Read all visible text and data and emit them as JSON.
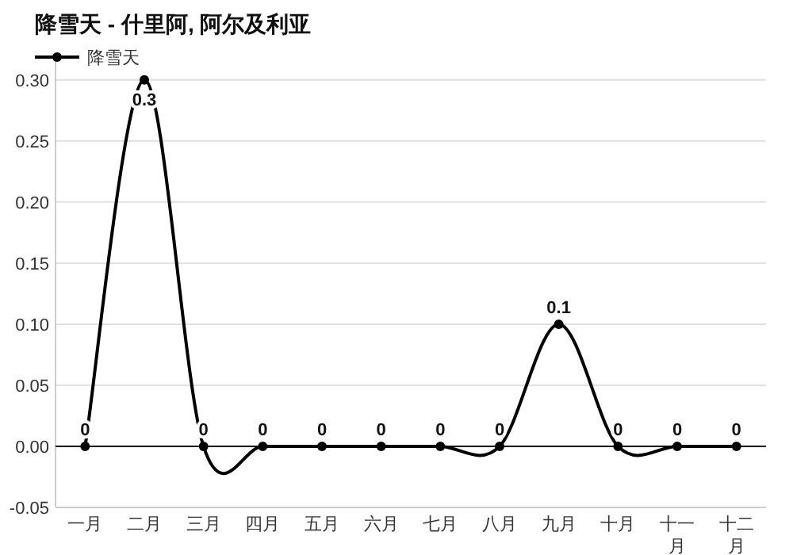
{
  "chart_data": {
    "type": "line",
    "title": "降雪天 - 什里阿, 阿尔及利亚",
    "categories": [
      "一月",
      "二月",
      "三月",
      "四月",
      "五月",
      "六月",
      "七月",
      "八月",
      "九月",
      "十月",
      "十一月",
      "十二月"
    ],
    "series": [
      {
        "name": "降雪天",
        "color": "#000000",
        "values": [
          0,
          0.3,
          0,
          0,
          0,
          0,
          0,
          0,
          0.1,
          0,
          0,
          0
        ]
      }
    ],
    "ylim": [
      -0.05,
      0.32
    ],
    "yticks": [
      {
        "value": -0.05,
        "label": "-0.05"
      },
      {
        "value": 0,
        "label": "0.00"
      },
      {
        "value": 0.05,
        "label": "0.05"
      },
      {
        "value": 0.1,
        "label": "0.10"
      },
      {
        "value": 0.15,
        "label": "0.15"
      },
      {
        "value": 0.2,
        "label": "0.20"
      },
      {
        "value": 0.25,
        "label": "0.25"
      },
      {
        "value": 0.3,
        "label": "0.30"
      }
    ],
    "grid": "y",
    "legend": "top left",
    "marker": "circle",
    "line_style": "solid",
    "data_labels": true,
    "ref_lines": [
      {
        "axis": "y",
        "value": 0,
        "color": "#000000"
      }
    ]
  }
}
